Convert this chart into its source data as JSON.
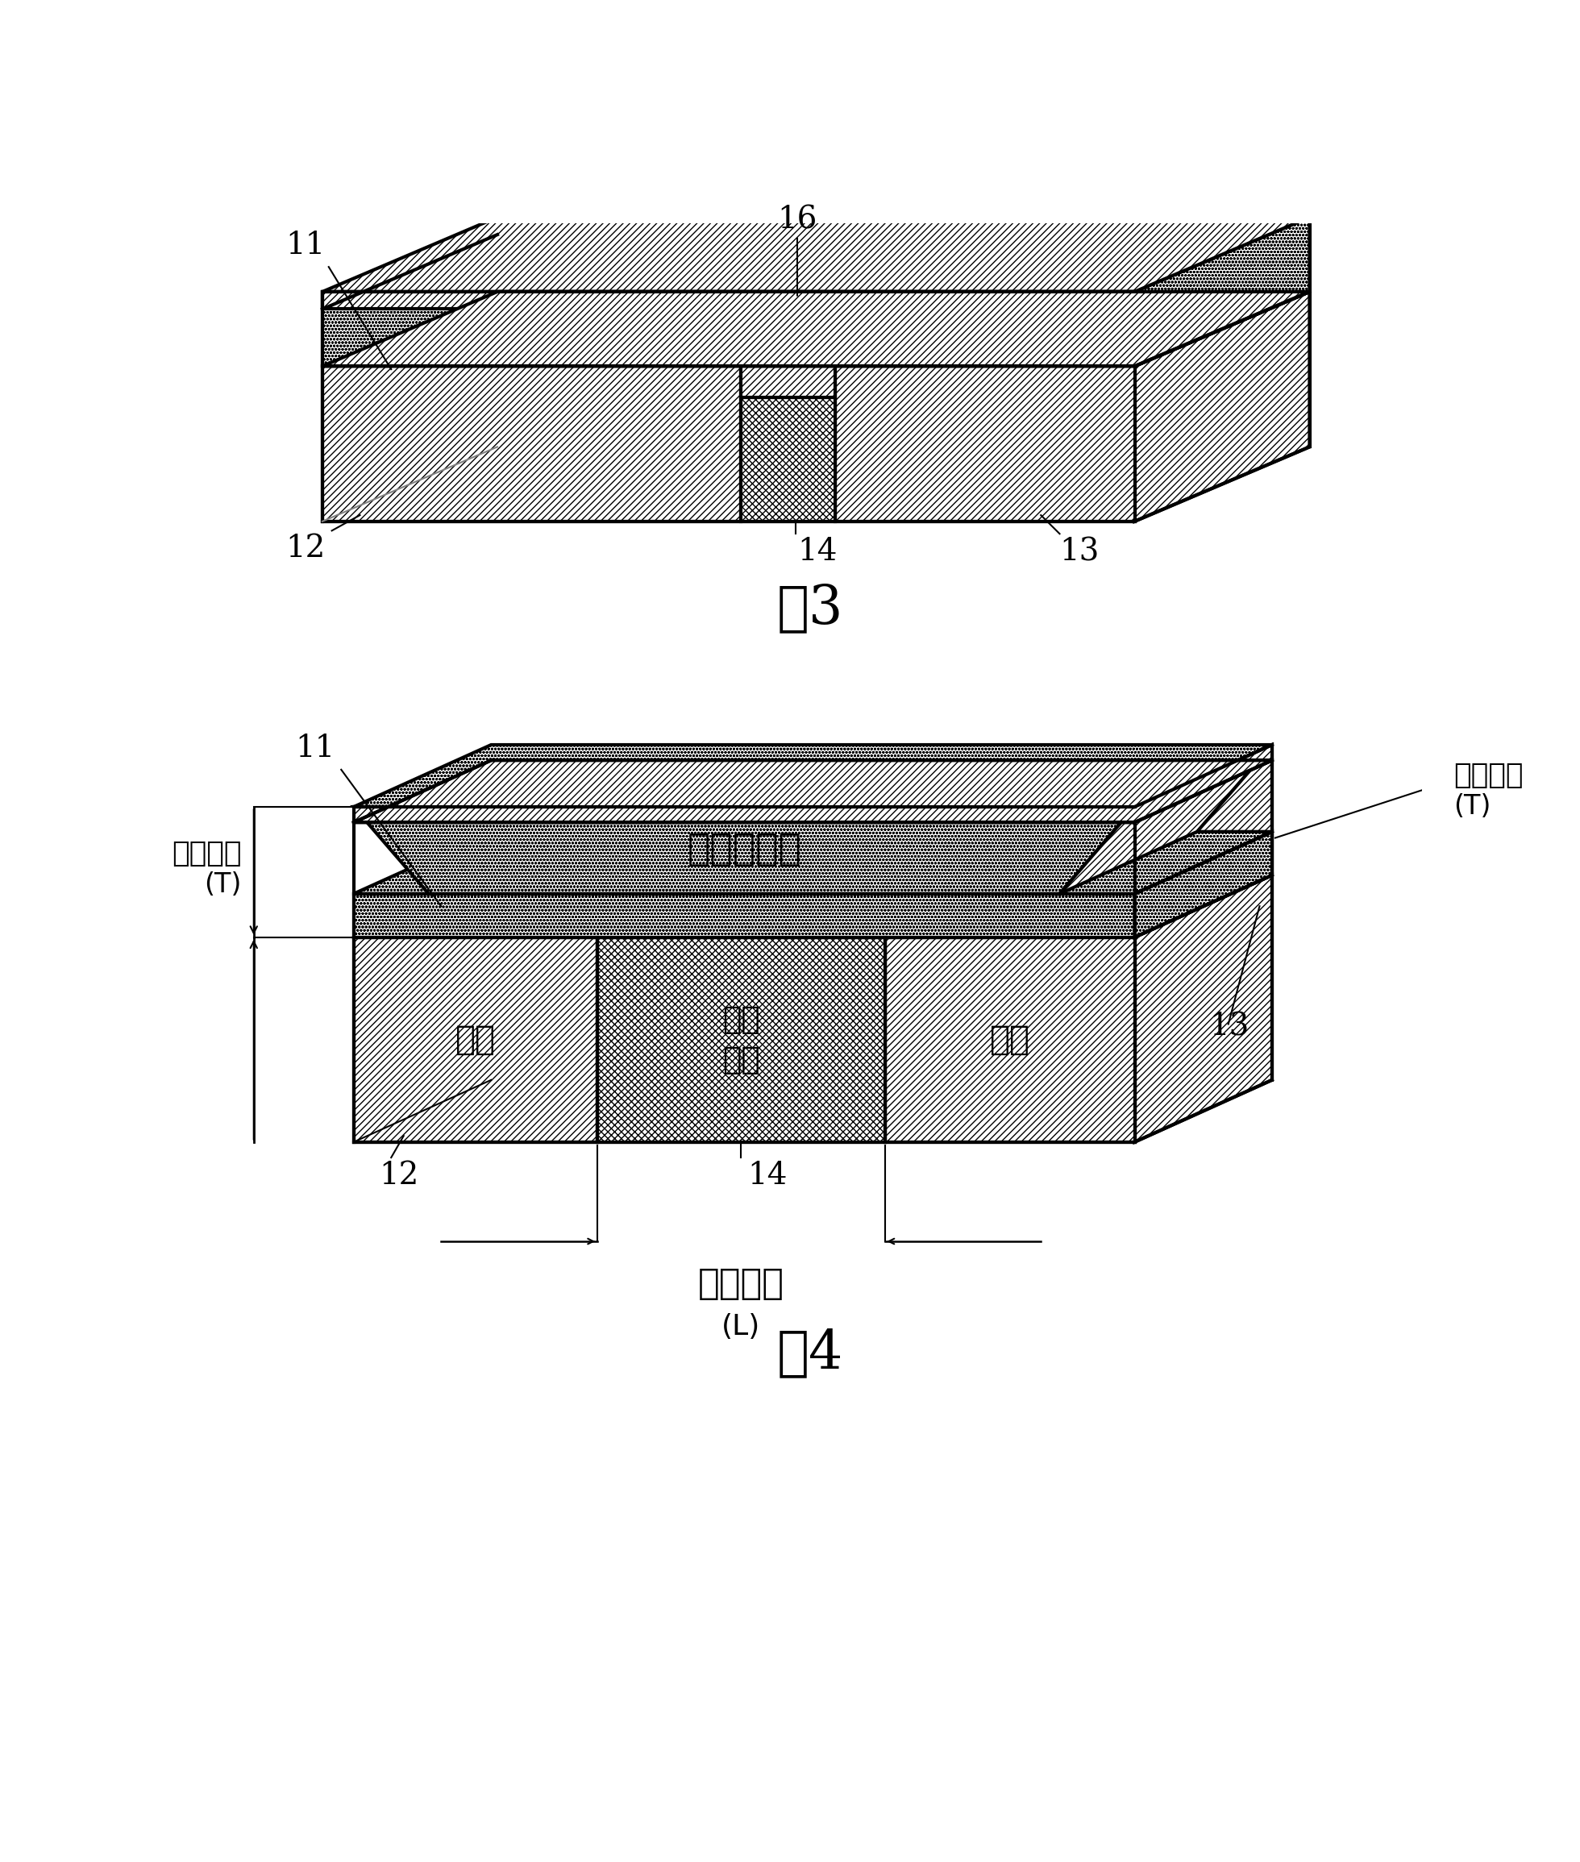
{
  "fig3_title": "图3",
  "fig4_title": "图4",
  "labels": {
    "phase_change": "相变化材料",
    "electrode": "电极",
    "channel_medium": "沟道\n介质",
    "channel_length": "沟道长度",
    "channel_length_sub": "(L)",
    "block_thickness_left": "区块厚度",
    "block_thickness_left_sub": "(T)",
    "block_thickness_right": "区块厚度",
    "block_thickness_right_sub": "(T)"
  },
  "ref_nums": [
    "11",
    "12",
    "13",
    "14",
    "16"
  ],
  "colors": {
    "background": "white",
    "line": "black",
    "face": "white"
  }
}
